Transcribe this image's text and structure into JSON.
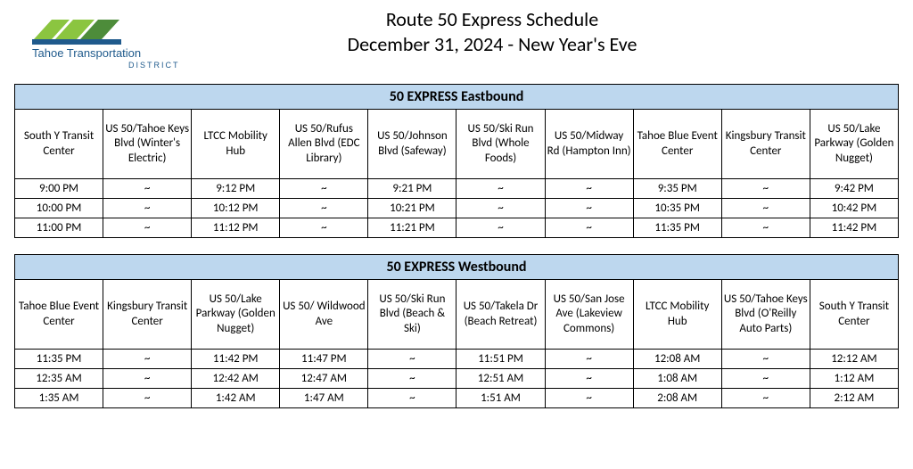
{
  "title_line1": "Route 50 Express Schedule",
  "title_line2": "December 31, 2024 - New Year's Eve",
  "logo": {
    "text_line1": "Tahoe Transportation",
    "text_line2": "DISTRICT",
    "accent_green_light": "#8bc540",
    "accent_green_dark": "#4d8c3a",
    "accent_blue": "#1f5a8c"
  },
  "colors": {
    "table_header_bg": "#bdd7ee",
    "border": "#000000",
    "text": "#000000",
    "background": "#ffffff"
  },
  "eastbound": {
    "title": "50 EXPRESS Eastbound",
    "stops": [
      "South Y Transit Center",
      "US 50/Tahoe Keys Blvd (Winter's Electric)",
      "LTCC Mobility Hub",
      "US 50/Rufus Allen Blvd (EDC Library)",
      "US 50/Johnson Blvd (Safeway)",
      "US 50/Ski Run Blvd (Whole Foods)",
      "US 50/Midway Rd (Hampton Inn)",
      "Tahoe Blue Event Center",
      "Kingsbury Transit Center",
      "US 50/Lake Parkway (Golden Nugget)"
    ],
    "rows": [
      [
        "9:00 PM",
        "~",
        "9:12 PM",
        "~",
        "9:21 PM",
        "~",
        "~",
        "9:35 PM",
        "~",
        "9:42 PM"
      ],
      [
        "10:00 PM",
        "~",
        "10:12 PM",
        "~",
        "10:21 PM",
        "~",
        "~",
        "10:35 PM",
        "~",
        "10:42 PM"
      ],
      [
        "11:00 PM",
        "~",
        "11:12 PM",
        "~",
        "11:21 PM",
        "~",
        "~",
        "11:35 PM",
        "~",
        "11:42 PM"
      ]
    ]
  },
  "westbound": {
    "title": "50 EXPRESS Westbound",
    "stops": [
      "Tahoe Blue Event Center",
      "Kingsbury Transit Center",
      "US 50/Lake Parkway (Golden Nugget)",
      "US 50/ Wildwood Ave",
      "US 50/Ski Run Blvd (Beach & Ski)",
      "US 50/Takela Dr (Beach Retreat)",
      "US 50/San Jose Ave (Lakeview Commons)",
      "LTCC Mobility Hub",
      "US 50/Tahoe Keys Blvd (O'Reilly Auto Parts)",
      "South Y Transit Center"
    ],
    "rows": [
      [
        "11:35 PM",
        "~",
        "11:42 PM",
        "11:47 PM",
        "~",
        "11:51 PM",
        "~",
        "12:08 AM",
        "~",
        "12:12 AM"
      ],
      [
        "12:35 AM",
        "~",
        "12:42 AM",
        "12:47 AM",
        "~",
        "12:51 AM",
        "~",
        "1:08 AM",
        "~",
        "1:12 AM"
      ],
      [
        "1:35 AM",
        "~",
        "1:42 AM",
        "1:47 AM",
        "~",
        "1:51 AM",
        "~",
        "2:08 AM",
        "~",
        "2:12 AM"
      ]
    ]
  }
}
